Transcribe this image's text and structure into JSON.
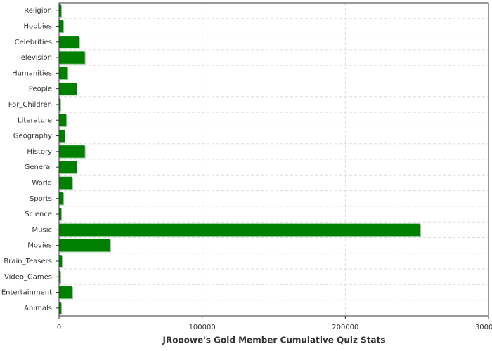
{
  "chart_data": {
    "type": "bar",
    "orientation": "horizontal",
    "title": "JRooowe's Gold Member Cumulative Quiz Stats",
    "categories": [
      "Religion",
      "Hobbies",
      "Celebrities",
      "Television",
      "Humanities",
      "People",
      "For_Children",
      "Literature",
      "Geography",
      "History",
      "General",
      "World",
      "Sports",
      "Science",
      "Music",
      "Movies",
      "Brain_Teasers",
      "Video_Games",
      "Entertainment",
      "Animals"
    ],
    "values": [
      1500,
      3000,
      14200,
      18000,
      6000,
      12300,
      1000,
      5000,
      4000,
      18000,
      12300,
      9300,
      3000,
      1500,
      252400,
      35800,
      2000,
      1000,
      9300,
      1500
    ],
    "color": "#008000",
    "xlim": [
      0,
      300000
    ],
    "xticks": [
      0,
      100000,
      200000,
      300000
    ],
    "grid": true
  }
}
